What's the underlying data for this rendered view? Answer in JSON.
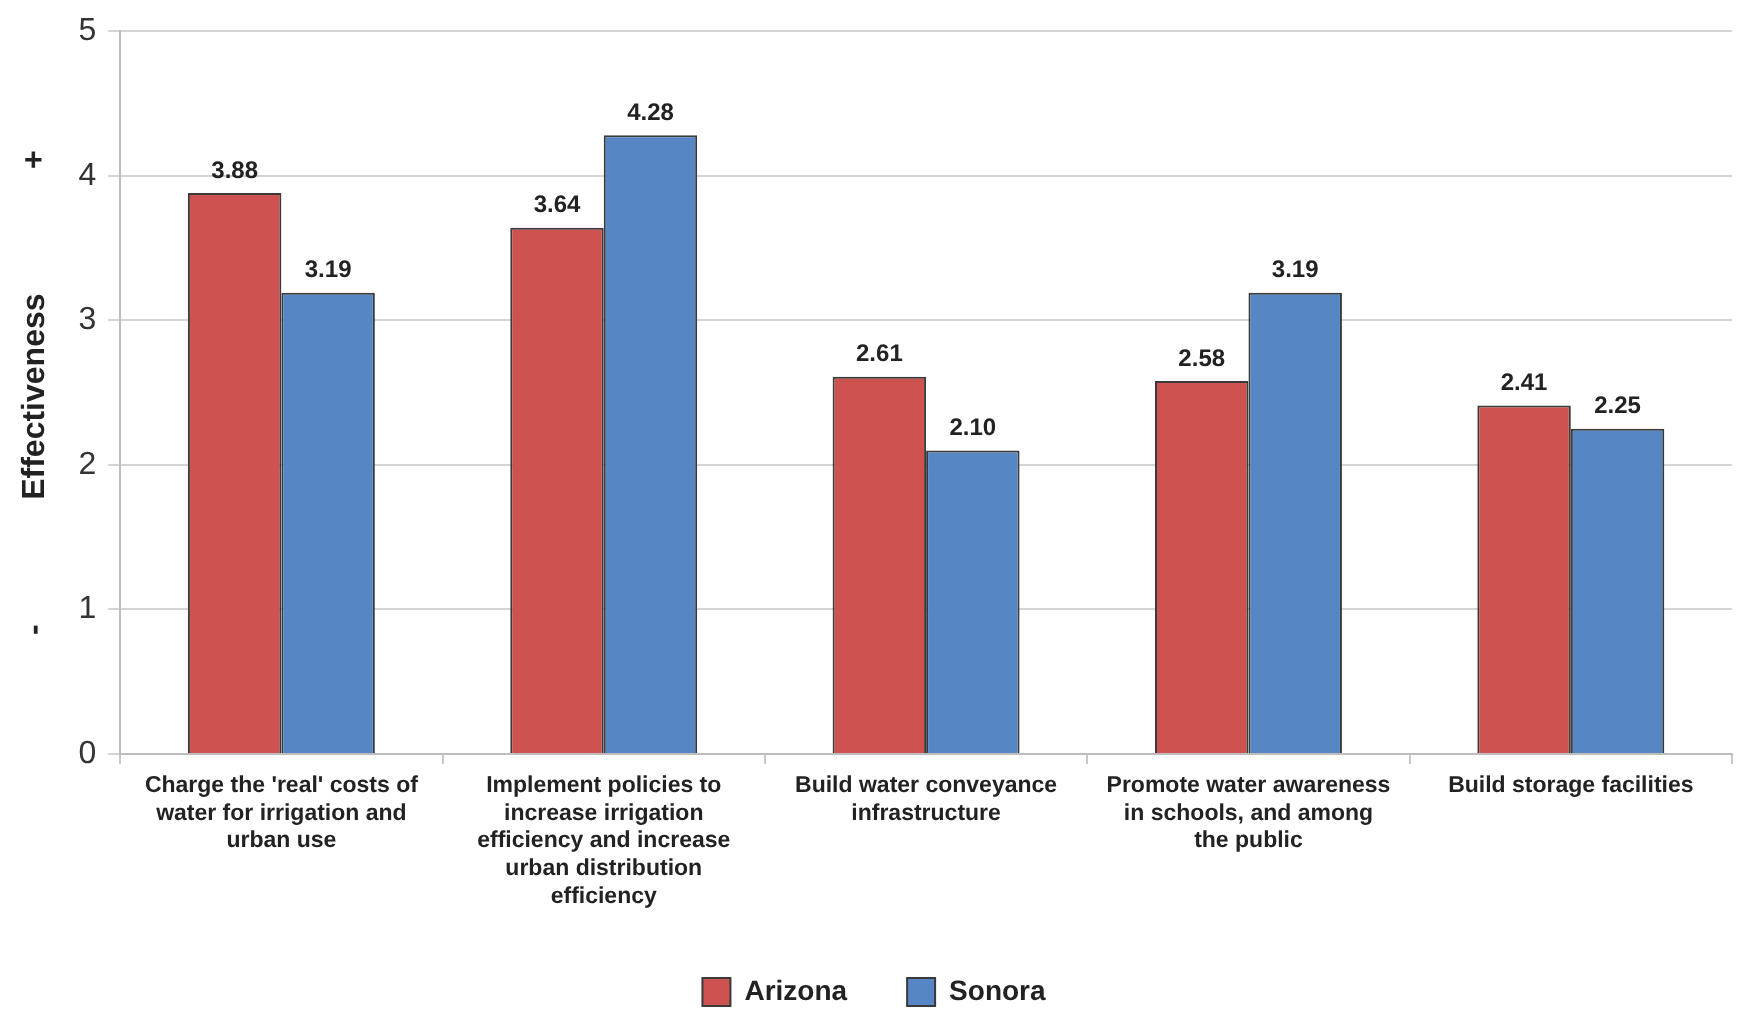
{
  "chart_data": {
    "type": "bar",
    "ylabel": "-              Effectiveness              +",
    "categories": [
      "Charge the 'real' costs of water for irrigation and urban use",
      "Implement policies to increase irrigation efficiency and increase urban distribution efficiency",
      "Build water conveyance infrastructure",
      "Promote water awareness in schools, and among the public",
      "Build storage facilities"
    ],
    "series": [
      {
        "name": "Arizona",
        "color": "#cd5250",
        "values": [
          3.88,
          3.64,
          2.61,
          2.58,
          2.41
        ],
        "value_labels": [
          "3.88",
          "3.64",
          "2.61",
          "2.58",
          "2.41"
        ]
      },
      {
        "name": "Sonora",
        "color": "#5686c4",
        "values": [
          3.19,
          4.28,
          2.1,
          3.19,
          2.25
        ],
        "value_labels": [
          "3.19",
          "4.28",
          "2.10",
          "3.19",
          "2.25"
        ]
      }
    ],
    "ylim": [
      0,
      5
    ],
    "yticks": [
      0,
      1,
      2,
      3,
      4,
      5
    ],
    "grid": "y",
    "legend": "bottom"
  }
}
